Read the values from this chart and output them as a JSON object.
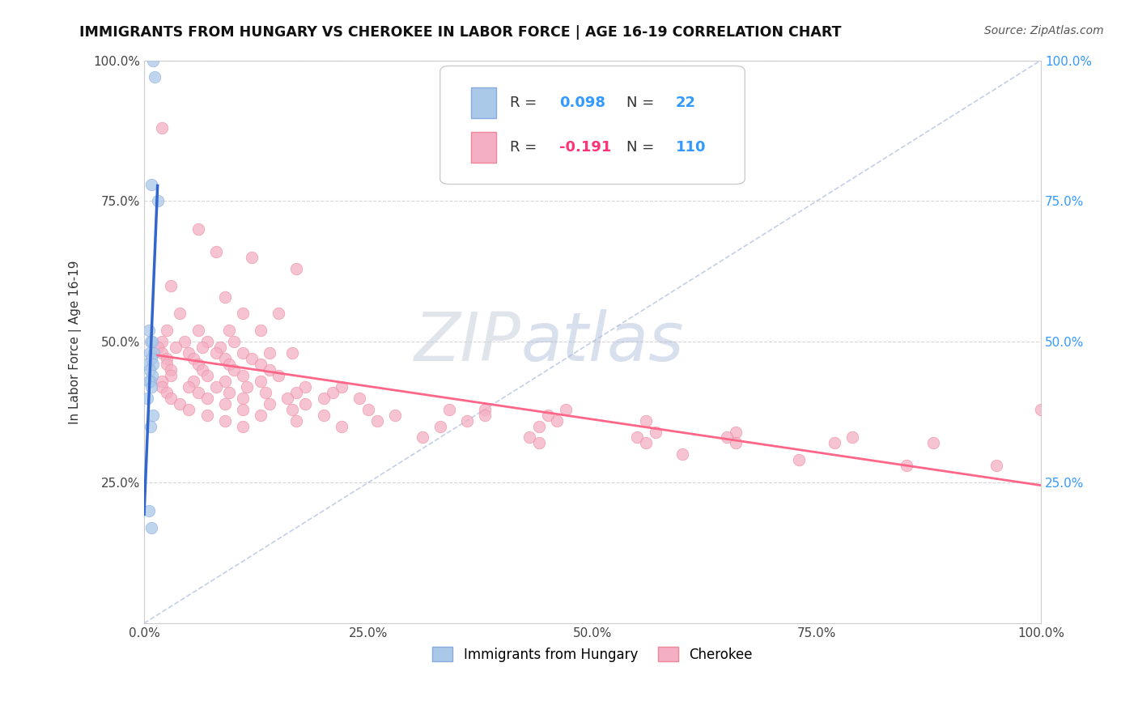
{
  "title": "IMMIGRANTS FROM HUNGARY VS CHEROKEE IN LABOR FORCE | AGE 16-19 CORRELATION CHART",
  "source": "Source: ZipAtlas.com",
  "ylabel": "In Labor Force | Age 16-19",
  "xlim": [
    0.0,
    1.0
  ],
  "ylim": [
    0.0,
    1.0
  ],
  "xtick_vals": [
    0.0,
    0.25,
    0.5,
    0.75,
    1.0
  ],
  "ytick_vals": [
    0.0,
    0.25,
    0.5,
    0.75,
    1.0
  ],
  "hungary_color": "#aac8e8",
  "cherokee_color": "#f4afc4",
  "hungary_edge": "#88aadd",
  "cherokee_edge": "#ee8899",
  "hungary_R": "0.098",
  "hungary_N": "22",
  "cherokee_R": "-0.191",
  "cherokee_N": "110",
  "R_label_color_hungary": "#3399ff",
  "R_label_color_cherokee": "#ff3377",
  "N_label_color": "#3399ff",
  "background_color": "#ffffff",
  "grid_color": "#cccccc",
  "hungary_line_color": "#3366cc",
  "cherokee_line_color": "#ff6688",
  "diagonal_color": "#aabbdd",
  "hungary_points": [
    [
      0.01,
      1.0
    ],
    [
      0.012,
      0.97
    ],
    [
      0.008,
      0.78
    ],
    [
      0.015,
      0.75
    ],
    [
      0.005,
      0.52
    ],
    [
      0.007,
      0.5
    ],
    [
      0.009,
      0.5
    ],
    [
      0.006,
      0.48
    ],
    [
      0.011,
      0.48
    ],
    [
      0.008,
      0.47
    ],
    [
      0.004,
      0.46
    ],
    [
      0.01,
      0.46
    ],
    [
      0.006,
      0.45
    ],
    [
      0.009,
      0.44
    ],
    [
      0.007,
      0.43
    ],
    [
      0.005,
      0.43
    ],
    [
      0.008,
      0.42
    ],
    [
      0.004,
      0.4
    ],
    [
      0.01,
      0.37
    ],
    [
      0.007,
      0.35
    ],
    [
      0.005,
      0.2
    ],
    [
      0.008,
      0.17
    ]
  ],
  "cherokee_points": [
    [
      0.02,
      0.88
    ],
    [
      0.06,
      0.7
    ],
    [
      0.08,
      0.66
    ],
    [
      0.12,
      0.65
    ],
    [
      0.17,
      0.63
    ],
    [
      0.03,
      0.6
    ],
    [
      0.09,
      0.58
    ],
    [
      0.04,
      0.55
    ],
    [
      0.11,
      0.55
    ],
    [
      0.15,
      0.55
    ],
    [
      0.025,
      0.52
    ],
    [
      0.06,
      0.52
    ],
    [
      0.095,
      0.52
    ],
    [
      0.13,
      0.52
    ],
    [
      0.02,
      0.5
    ],
    [
      0.045,
      0.5
    ],
    [
      0.07,
      0.5
    ],
    [
      0.1,
      0.5
    ],
    [
      0.015,
      0.49
    ],
    [
      0.035,
      0.49
    ],
    [
      0.065,
      0.49
    ],
    [
      0.085,
      0.49
    ],
    [
      0.02,
      0.48
    ],
    [
      0.05,
      0.48
    ],
    [
      0.08,
      0.48
    ],
    [
      0.11,
      0.48
    ],
    [
      0.14,
      0.48
    ],
    [
      0.165,
      0.48
    ],
    [
      0.025,
      0.47
    ],
    [
      0.055,
      0.47
    ],
    [
      0.09,
      0.47
    ],
    [
      0.12,
      0.47
    ],
    [
      0.025,
      0.46
    ],
    [
      0.06,
      0.46
    ],
    [
      0.095,
      0.46
    ],
    [
      0.13,
      0.46
    ],
    [
      0.03,
      0.45
    ],
    [
      0.065,
      0.45
    ],
    [
      0.1,
      0.45
    ],
    [
      0.14,
      0.45
    ],
    [
      0.03,
      0.44
    ],
    [
      0.07,
      0.44
    ],
    [
      0.11,
      0.44
    ],
    [
      0.15,
      0.44
    ],
    [
      0.02,
      0.43
    ],
    [
      0.055,
      0.43
    ],
    [
      0.09,
      0.43
    ],
    [
      0.13,
      0.43
    ],
    [
      0.02,
      0.42
    ],
    [
      0.05,
      0.42
    ],
    [
      0.08,
      0.42
    ],
    [
      0.115,
      0.42
    ],
    [
      0.18,
      0.42
    ],
    [
      0.22,
      0.42
    ],
    [
      0.025,
      0.41
    ],
    [
      0.06,
      0.41
    ],
    [
      0.095,
      0.41
    ],
    [
      0.135,
      0.41
    ],
    [
      0.17,
      0.41
    ],
    [
      0.21,
      0.41
    ],
    [
      0.03,
      0.4
    ],
    [
      0.07,
      0.4
    ],
    [
      0.11,
      0.4
    ],
    [
      0.16,
      0.4
    ],
    [
      0.2,
      0.4
    ],
    [
      0.24,
      0.4
    ],
    [
      0.04,
      0.39
    ],
    [
      0.09,
      0.39
    ],
    [
      0.14,
      0.39
    ],
    [
      0.18,
      0.39
    ],
    [
      0.05,
      0.38
    ],
    [
      0.11,
      0.38
    ],
    [
      0.165,
      0.38
    ],
    [
      0.25,
      0.38
    ],
    [
      0.34,
      0.38
    ],
    [
      0.38,
      0.38
    ],
    [
      0.47,
      0.38
    ],
    [
      0.07,
      0.37
    ],
    [
      0.13,
      0.37
    ],
    [
      0.2,
      0.37
    ],
    [
      0.28,
      0.37
    ],
    [
      0.38,
      0.37
    ],
    [
      0.45,
      0.37
    ],
    [
      0.09,
      0.36
    ],
    [
      0.17,
      0.36
    ],
    [
      0.26,
      0.36
    ],
    [
      0.36,
      0.36
    ],
    [
      0.46,
      0.36
    ],
    [
      0.56,
      0.36
    ],
    [
      0.11,
      0.35
    ],
    [
      0.22,
      0.35
    ],
    [
      0.33,
      0.35
    ],
    [
      0.44,
      0.35
    ],
    [
      0.57,
      0.34
    ],
    [
      0.66,
      0.34
    ],
    [
      0.31,
      0.33
    ],
    [
      0.43,
      0.33
    ],
    [
      0.55,
      0.33
    ],
    [
      0.65,
      0.33
    ],
    [
      0.79,
      0.33
    ],
    [
      0.44,
      0.32
    ],
    [
      0.56,
      0.32
    ],
    [
      0.66,
      0.32
    ],
    [
      0.77,
      0.32
    ],
    [
      0.88,
      0.32
    ],
    [
      0.6,
      0.3
    ],
    [
      0.73,
      0.29
    ],
    [
      0.85,
      0.28
    ],
    [
      0.95,
      0.28
    ],
    [
      1.0,
      0.38
    ]
  ]
}
